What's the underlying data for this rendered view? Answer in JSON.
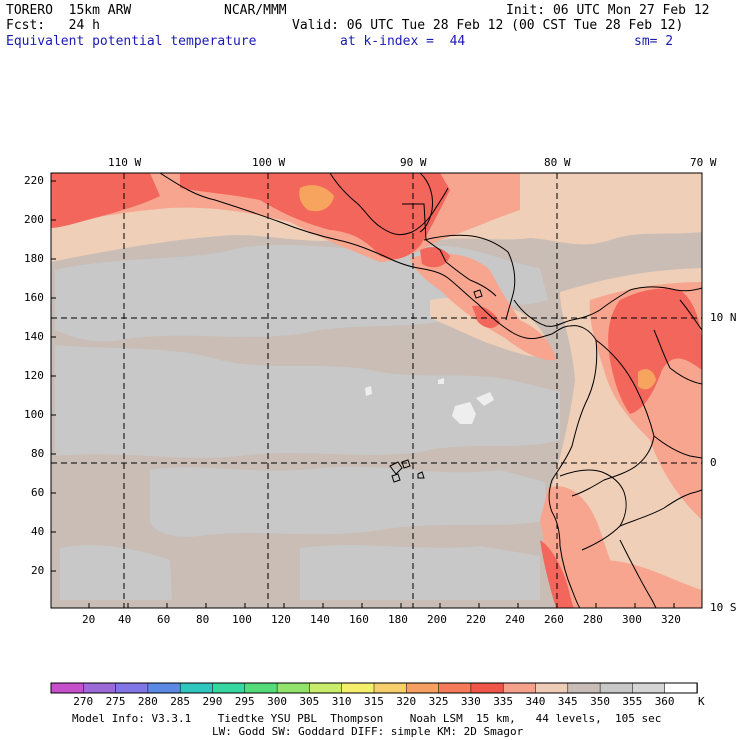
{
  "header": {
    "model": "TORERO  15km ARW",
    "center": "NCAR/MMM",
    "init": "Init: 06 UTC Mon 27 Feb 12",
    "fcst": "Fcst:   24 h",
    "valid": "Valid: 06 UTC Tue 28 Feb 12 (00 CST Tue 28 Feb 12)",
    "field": "Equivalent potential temperature",
    "level": "at k-index =  44",
    "smooth": "sm= 2"
  },
  "map": {
    "lon_labels": [
      "110 W",
      "100 W",
      "90 W",
      "80 W",
      "70 W"
    ],
    "lat_labels": [
      "10 N",
      "0",
      "10 S"
    ],
    "y_ticks": [
      "220",
      "200",
      "180",
      "160",
      "140",
      "120",
      "100",
      "80",
      "60",
      "40",
      "20"
    ],
    "x_ticks": [
      "20",
      "40",
      "60",
      "80",
      "100",
      "120",
      "140",
      "160",
      "180",
      "200",
      "220",
      "240",
      "260",
      "280",
      "300",
      "320"
    ],
    "colors": {
      "le330": "#c8c8c8",
      "c335": "#c9bdb5",
      "c340": "#efcfb8",
      "c345": "#f7a58f",
      "c350": "#f3665c",
      "c355": "#f7a55e"
    }
  },
  "colorbar": {
    "labels": [
      "270",
      "275",
      "280",
      "285",
      "290",
      "295",
      "300",
      "305",
      "310",
      "315",
      "320",
      "325",
      "330",
      "335",
      "340",
      "345",
      "350",
      "355",
      "360"
    ],
    "unit": "K",
    "colors": [
      "#c64fcb",
      "#9b6ad6",
      "#8276e6",
      "#5a8ae6",
      "#2fc6c0",
      "#35d6a0",
      "#55dc7a",
      "#92e36a",
      "#c9ec6a",
      "#f4f06c",
      "#f6cf6a",
      "#f6a060",
      "#f47a5a",
      "#ef5548",
      "#f69f8a",
      "#efcdb8",
      "#c9bdb5",
      "#c8c8c8",
      "#d6d6d6",
      "#ffffff"
    ]
  },
  "footer": {
    "line1": "Model Info: V3.3.1    Tiedtke YSU PBL  Thompson    Noah LSM  15 km,   44 levels,  105 sec",
    "line2": "LW: Godd SW: Goddard DIFF: simple KM: 2D Smagor"
  }
}
